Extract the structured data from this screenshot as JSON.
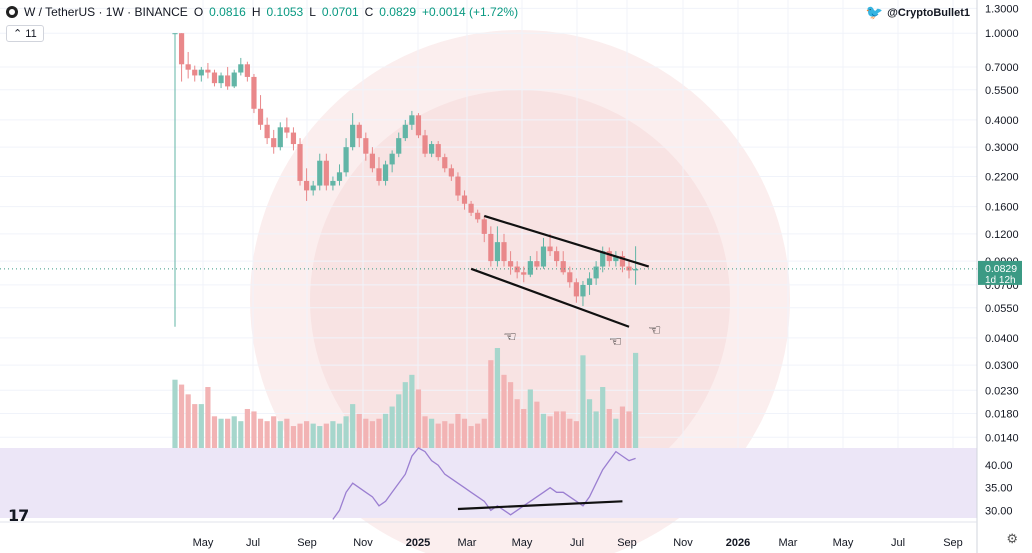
{
  "header": {
    "symbol": "W / TetherUS · 1W · BINANCE",
    "open_label": "O",
    "open": "0.0816",
    "high_label": "H",
    "high": "0.1053",
    "low_label": "L",
    "low": "0.0701",
    "close_label": "C",
    "close": "0.0829",
    "change": "+0.0014 (+1.72%)",
    "indicator_value": "11"
  },
  "watermark_handle": "@CryptoBullet1",
  "price_tag": {
    "price": "0.0829",
    "countdown": "1d 12h"
  },
  "colors": {
    "up": "#62b5a6",
    "down": "#e9888a",
    "rsi": "#9b7fd1",
    "rsi_band": "#ece6f7",
    "tag": "#3b9a84"
  },
  "chart_data": {
    "type": "candlestick",
    "scale": "log",
    "price_axis_ticks": [
      "1.3000",
      "1.0000",
      "0.7000",
      "0.5500",
      "0.4000",
      "0.3000",
      "0.2200",
      "0.1600",
      "0.1200",
      "0.0900",
      "0.0700",
      "0.0550",
      "0.0400",
      "0.0300",
      "0.0230",
      "0.0180",
      "0.0140"
    ],
    "rsi_axis_ticks": [
      "40.00",
      "35.00",
      "30.00"
    ],
    "x_tick_labels": [
      "May",
      "Jul",
      "Sep",
      "Nov",
      "2025",
      "Mar",
      "May",
      "Jul",
      "Sep",
      "Nov",
      "2026",
      "Mar",
      "May",
      "Jul",
      "Sep"
    ],
    "ylim": [
      0.0125,
      1.42
    ],
    "rsi_ylim": [
      28.3,
      43.8
    ],
    "candles": [
      [
        1.0,
        1.0,
        0.045,
        1.0
      ],
      [
        1.0,
        1.0,
        0.6,
        0.72
      ],
      [
        0.72,
        0.82,
        0.62,
        0.68
      ],
      [
        0.68,
        0.71,
        0.6,
        0.64
      ],
      [
        0.64,
        0.7,
        0.6,
        0.68
      ],
      [
        0.68,
        0.73,
        0.62,
        0.66
      ],
      [
        0.66,
        0.68,
        0.57,
        0.59
      ],
      [
        0.59,
        0.66,
        0.56,
        0.64
      ],
      [
        0.64,
        0.7,
        0.55,
        0.57
      ],
      [
        0.57,
        0.68,
        0.56,
        0.66
      ],
      [
        0.66,
        0.77,
        0.64,
        0.72
      ],
      [
        0.72,
        0.74,
        0.6,
        0.63
      ],
      [
        0.63,
        0.65,
        0.43,
        0.45
      ],
      [
        0.45,
        0.52,
        0.36,
        0.38
      ],
      [
        0.38,
        0.41,
        0.31,
        0.33
      ],
      [
        0.33,
        0.36,
        0.28,
        0.3
      ],
      [
        0.3,
        0.39,
        0.29,
        0.37
      ],
      [
        0.37,
        0.41,
        0.33,
        0.35
      ],
      [
        0.35,
        0.37,
        0.29,
        0.31
      ],
      [
        0.31,
        0.33,
        0.2,
        0.21
      ],
      [
        0.21,
        0.24,
        0.17,
        0.19
      ],
      [
        0.19,
        0.21,
        0.18,
        0.2
      ],
      [
        0.2,
        0.28,
        0.19,
        0.26
      ],
      [
        0.26,
        0.28,
        0.19,
        0.2
      ],
      [
        0.2,
        0.22,
        0.19,
        0.21
      ],
      [
        0.21,
        0.25,
        0.2,
        0.23
      ],
      [
        0.23,
        0.33,
        0.22,
        0.3
      ],
      [
        0.3,
        0.43,
        0.29,
        0.38
      ],
      [
        0.38,
        0.39,
        0.3,
        0.33
      ],
      [
        0.33,
        0.35,
        0.26,
        0.28
      ],
      [
        0.28,
        0.3,
        0.23,
        0.24
      ],
      [
        0.24,
        0.27,
        0.2,
        0.21
      ],
      [
        0.21,
        0.26,
        0.2,
        0.25
      ],
      [
        0.25,
        0.29,
        0.23,
        0.28
      ],
      [
        0.28,
        0.35,
        0.27,
        0.33
      ],
      [
        0.33,
        0.4,
        0.32,
        0.38
      ],
      [
        0.38,
        0.44,
        0.36,
        0.42
      ],
      [
        0.42,
        0.43,
        0.33,
        0.34
      ],
      [
        0.34,
        0.36,
        0.27,
        0.28
      ],
      [
        0.28,
        0.32,
        0.27,
        0.31
      ],
      [
        0.31,
        0.32,
        0.26,
        0.27
      ],
      [
        0.27,
        0.28,
        0.23,
        0.24
      ],
      [
        0.24,
        0.25,
        0.21,
        0.22
      ],
      [
        0.22,
        0.23,
        0.17,
        0.18
      ],
      [
        0.18,
        0.19,
        0.155,
        0.165
      ],
      [
        0.165,
        0.17,
        0.145,
        0.15
      ],
      [
        0.15,
        0.155,
        0.135,
        0.14
      ],
      [
        0.14,
        0.145,
        0.11,
        0.12
      ],
      [
        0.12,
        0.13,
        0.085,
        0.09
      ],
      [
        0.09,
        0.13,
        0.085,
        0.11
      ],
      [
        0.11,
        0.12,
        0.085,
        0.09
      ],
      [
        0.09,
        0.1,
        0.078,
        0.085
      ],
      [
        0.085,
        0.09,
        0.075,
        0.08
      ],
      [
        0.08,
        0.085,
        0.072,
        0.078
      ],
      [
        0.078,
        0.095,
        0.076,
        0.09
      ],
      [
        0.09,
        0.1,
        0.082,
        0.085
      ],
      [
        0.085,
        0.115,
        0.083,
        0.105
      ],
      [
        0.105,
        0.12,
        0.095,
        0.1
      ],
      [
        0.1,
        0.105,
        0.085,
        0.09
      ],
      [
        0.09,
        0.1,
        0.078,
        0.08
      ],
      [
        0.08,
        0.085,
        0.068,
        0.072
      ],
      [
        0.072,
        0.075,
        0.058,
        0.062
      ],
      [
        0.062,
        0.073,
        0.056,
        0.07
      ],
      [
        0.07,
        0.08,
        0.063,
        0.075
      ],
      [
        0.075,
        0.09,
        0.07,
        0.085
      ],
      [
        0.085,
        0.105,
        0.08,
        0.1
      ],
      [
        0.1,
        0.104,
        0.085,
        0.09
      ],
      [
        0.09,
        0.1,
        0.085,
        0.095
      ],
      [
        0.095,
        0.1,
        0.08,
        0.085
      ],
      [
        0.085,
        0.09,
        0.075,
        0.0815
      ],
      [
        0.0816,
        0.1053,
        0.0701,
        0.0829
      ]
    ],
    "candle_weeks": [
      0,
      1,
      2,
      3,
      4,
      5,
      6,
      7,
      8,
      9,
      10,
      11,
      12,
      13,
      14,
      15,
      16,
      17,
      18,
      19,
      20,
      21,
      22,
      23,
      24,
      25,
      26,
      27,
      28,
      29,
      30,
      31,
      32,
      33,
      34,
      35,
      36,
      37,
      38,
      39,
      40,
      41,
      42,
      43,
      44,
      45,
      46,
      47,
      48,
      49,
      50,
      51,
      52,
      53,
      54,
      55,
      56,
      57,
      58,
      59,
      60,
      61,
      62,
      63,
      64,
      65,
      66,
      67,
      68,
      69,
      70
    ],
    "volumes": [
      0.28,
      0.26,
      0.22,
      0.18,
      0.18,
      0.25,
      0.13,
      0.12,
      0.12,
      0.13,
      0.11,
      0.16,
      0.15,
      0.12,
      0.11,
      0.13,
      0.11,
      0.12,
      0.09,
      0.1,
      0.11,
      0.1,
      0.09,
      0.1,
      0.11,
      0.1,
      0.13,
      0.18,
      0.14,
      0.12,
      0.11,
      0.12,
      0.14,
      0.17,
      0.22,
      0.27,
      0.3,
      0.24,
      0.13,
      0.12,
      0.1,
      0.11,
      0.1,
      0.14,
      0.12,
      0.09,
      0.1,
      0.12,
      0.36,
      0.41,
      0.3,
      0.27,
      0.2,
      0.16,
      0.24,
      0.19,
      0.14,
      0.13,
      0.15,
      0.15,
      0.12,
      0.11,
      0.38,
      0.2,
      0.15,
      0.25,
      0.16,
      0.12,
      0.17,
      0.15,
      0.39
    ],
    "rsi": [
      28,
      28,
      28,
      28,
      28,
      28,
      28,
      28,
      28,
      28,
      28,
      28,
      28,
      28,
      28,
      28,
      28,
      28,
      28,
      28,
      28,
      28,
      28,
      28,
      28,
      30,
      34,
      36,
      35,
      34,
      33,
      31,
      32,
      34,
      36,
      38,
      42,
      44,
      43,
      41,
      40,
      38,
      37,
      36,
      35,
      34,
      33,
      32,
      30,
      31,
      30,
      29,
      30,
      31,
      32,
      33,
      34,
      35,
      34,
      34,
      33,
      32,
      31,
      33,
      36,
      39,
      41,
      43,
      42,
      41,
      41.5
    ],
    "annotations": {
      "channel_upper": [
        [
          47,
          0.145
        ],
        [
          72,
          0.085
        ]
      ],
      "channel_lower": [
        [
          45,
          0.083
        ],
        [
          69,
          0.045
        ]
      ],
      "rsi_support": [
        [
          43,
          30.3
        ],
        [
          68,
          32.0
        ]
      ],
      "markers": [
        [
          49,
          0.041
        ],
        [
          65,
          0.039
        ],
        [
          71,
          0.044
        ]
      ]
    }
  }
}
